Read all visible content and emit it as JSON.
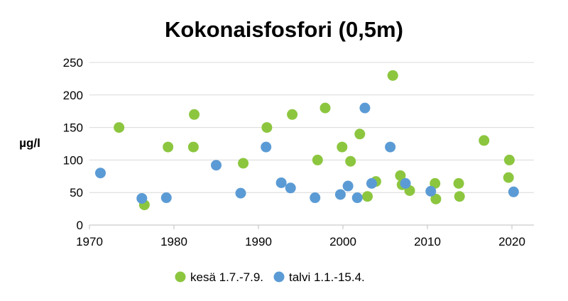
{
  "chart_data": {
    "type": "scatter",
    "title": "Kokonaisfosfori (0,5m)",
    "xlabel": "",
    "ylabel": "µg/l",
    "xlim": [
      1970,
      2025
    ],
    "ylim": [
      0,
      250
    ],
    "xticks": [
      1970,
      1980,
      1990,
      2000,
      2010,
      2020
    ],
    "yticks": [
      0,
      50,
      100,
      150,
      200,
      250
    ],
    "grid": "horizontal",
    "legend": "bottom",
    "series": [
      {
        "name": "kesä 1.7.-7.9.",
        "color": "#8cc63f",
        "points": [
          [
            1973.5,
            150
          ],
          [
            1976.5,
            31
          ],
          [
            1979.3,
            120
          ],
          [
            1982.3,
            120
          ],
          [
            1982.4,
            170
          ],
          [
            1988.2,
            95
          ],
          [
            1991.0,
            150
          ],
          [
            1994.0,
            170
          ],
          [
            1997.0,
            100
          ],
          [
            1997.9,
            180
          ],
          [
            1999.9,
            120
          ],
          [
            2000.9,
            98
          ],
          [
            2002.0,
            140
          ],
          [
            2002.9,
            44
          ],
          [
            2003.9,
            67
          ],
          [
            2005.9,
            230
          ],
          [
            2006.8,
            76
          ],
          [
            2007.0,
            62
          ],
          [
            2007.9,
            53
          ],
          [
            2010.9,
            64
          ],
          [
            2011.0,
            40
          ],
          [
            2013.7,
            64
          ],
          [
            2013.8,
            44
          ],
          [
            2016.7,
            130
          ],
          [
            2019.6,
            73
          ],
          [
            2019.7,
            100
          ]
        ]
      },
      {
        "name": "talvi 1.1.-15.4.",
        "color": "#5b9bd5",
        "points": [
          [
            1971.3,
            80
          ],
          [
            1976.2,
            41
          ],
          [
            1979.1,
            42
          ],
          [
            1985.0,
            92
          ],
          [
            1987.9,
            49
          ],
          [
            1990.9,
            120
          ],
          [
            1992.7,
            65
          ],
          [
            1993.8,
            57
          ],
          [
            1996.7,
            42
          ],
          [
            1999.7,
            47
          ],
          [
            2000.6,
            60
          ],
          [
            2001.7,
            42
          ],
          [
            2002.6,
            180
          ],
          [
            2003.4,
            64
          ],
          [
            2005.6,
            120
          ],
          [
            2007.4,
            64
          ],
          [
            2010.4,
            52
          ],
          [
            2020.2,
            51
          ]
        ]
      }
    ]
  }
}
